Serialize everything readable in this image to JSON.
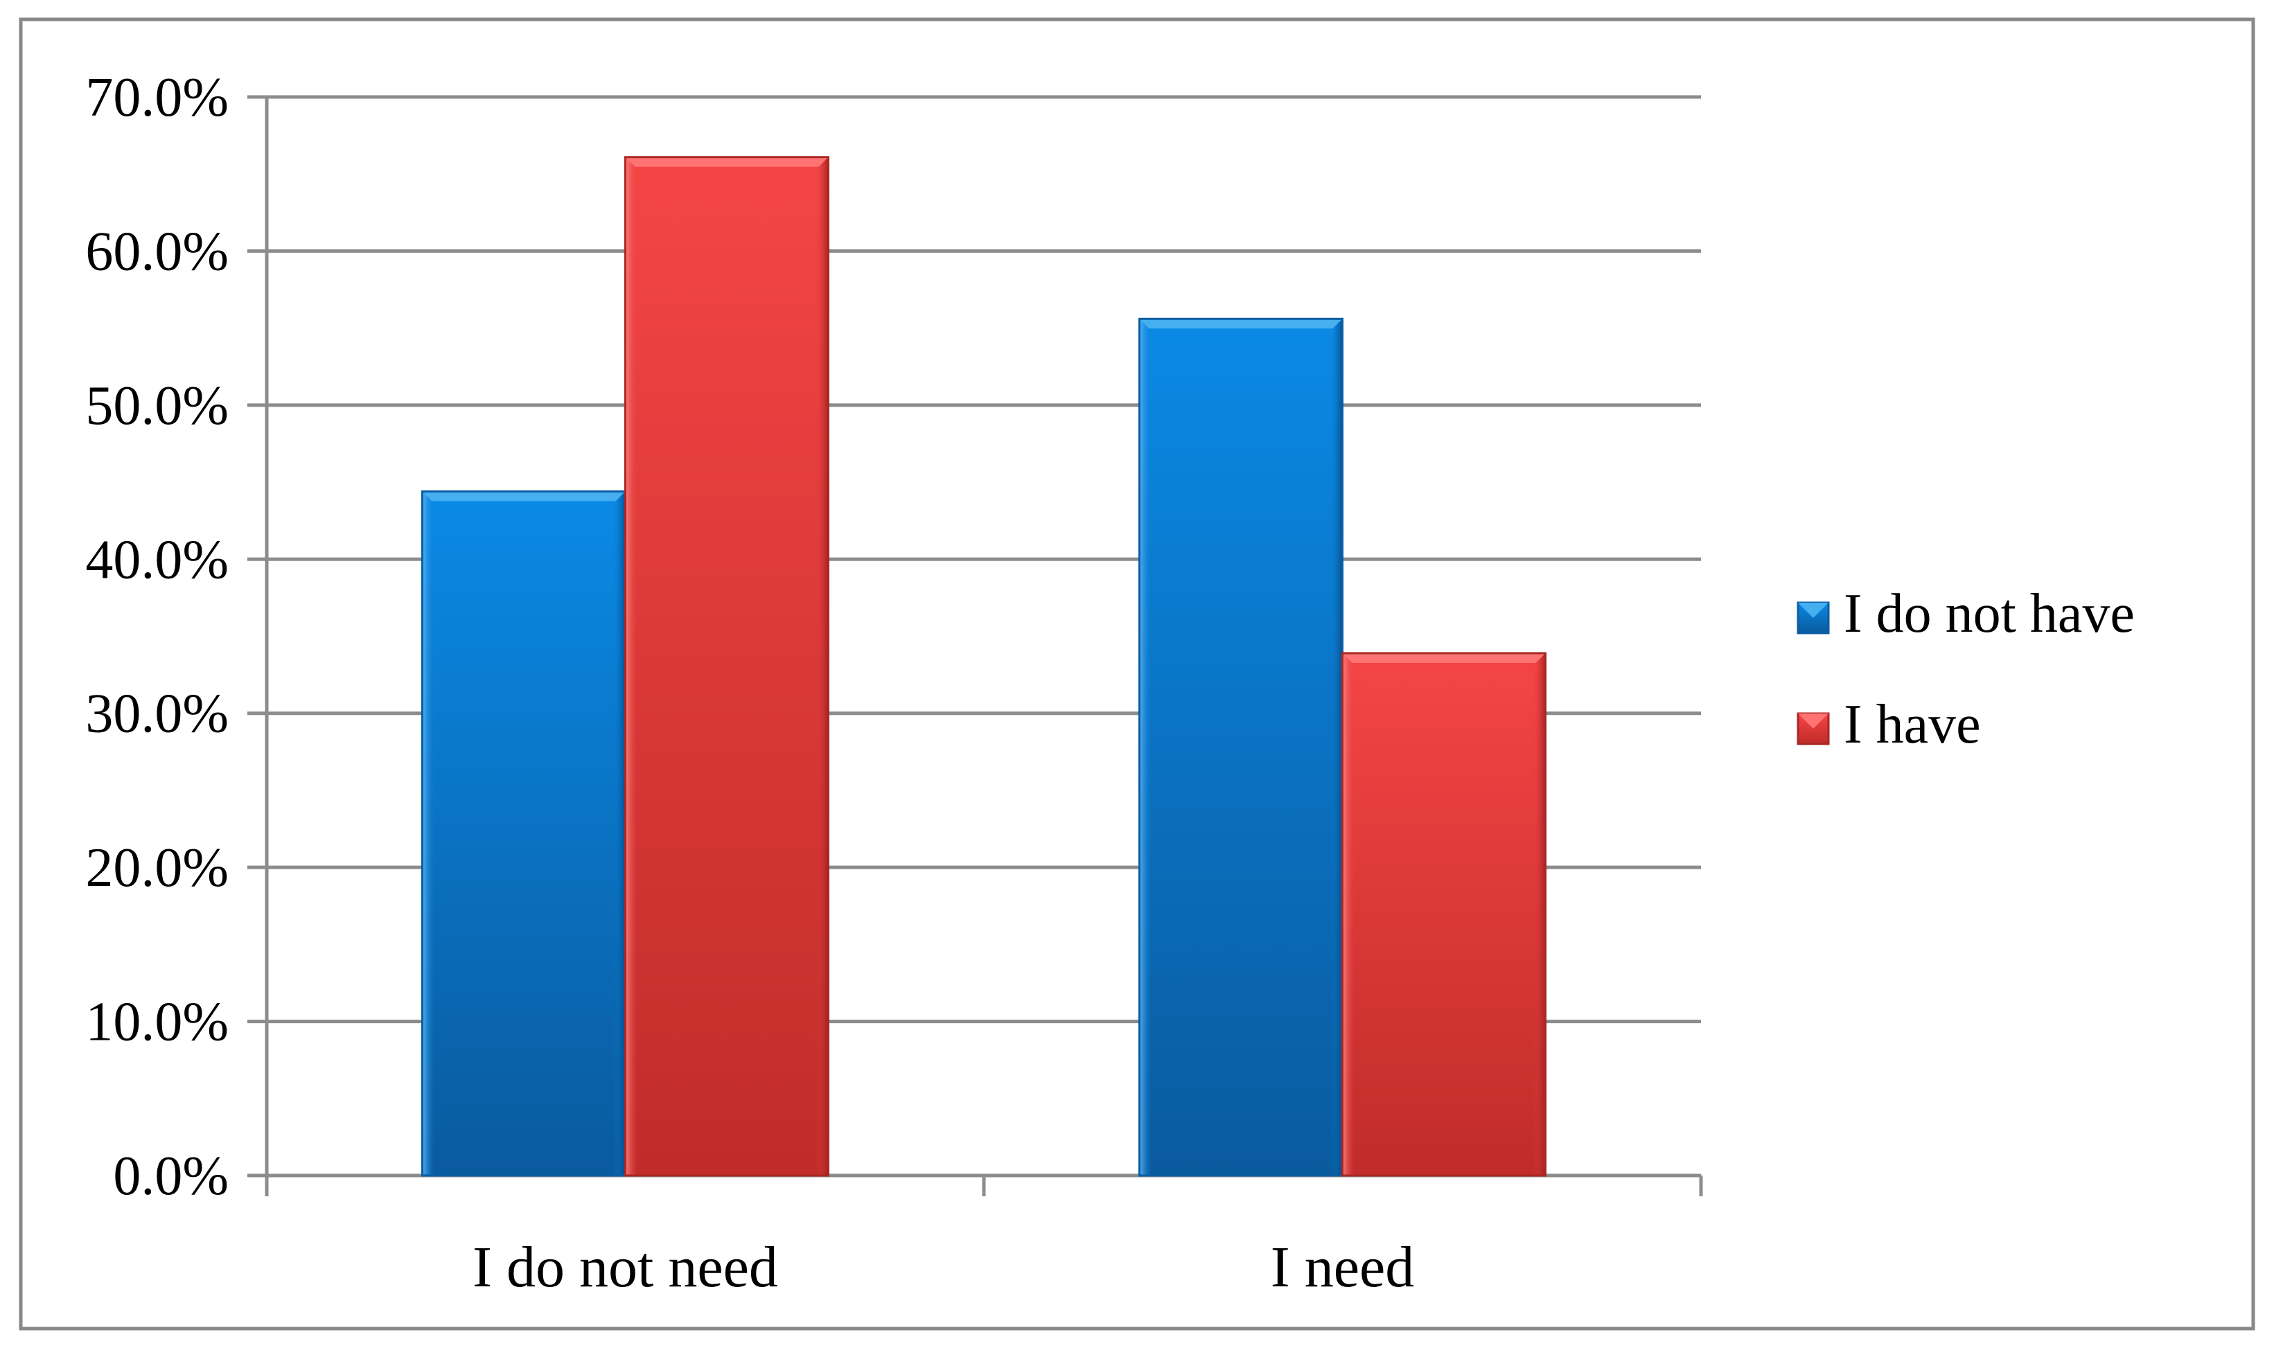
{
  "chart_data": {
    "type": "bar",
    "title": "",
    "xlabel": "",
    "ylabel": "",
    "categories": [
      "I do not need",
      "I need"
    ],
    "series": [
      {
        "name": "I do not have",
        "values": [
          44.4,
          55.6
        ],
        "color": "#1a7fd4"
      },
      {
        "name": "I have",
        "values": [
          66.1,
          33.9
        ],
        "color": "#e83d3b"
      }
    ],
    "ylim": [
      0,
      70
    ],
    "yticks": [
      0,
      10,
      20,
      30,
      40,
      50,
      60,
      70
    ],
    "ytick_labels": [
      "0.0%",
      "10.0%",
      "20.0%",
      "30.0%",
      "40.0%",
      "50.0%",
      "60.0%",
      "70.0%"
    ],
    "grid": true,
    "legend_position": "right"
  }
}
